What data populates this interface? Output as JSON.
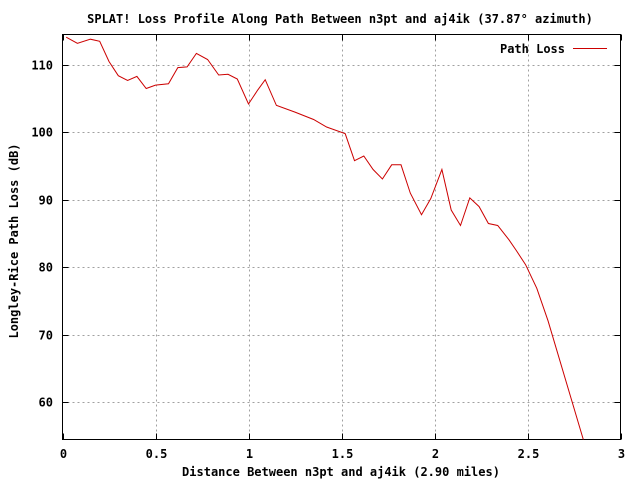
{
  "chart_data": {
    "type": "line",
    "title": "SPLAT! Loss Profile Along Path Between n3pt and aj4ik (37.87° azimuth)",
    "xlabel": "Distance Between n3pt and aj4ik (2.90 miles)",
    "ylabel": "Longley-Rice Path Loss (dB)",
    "xlim": [
      0,
      3
    ],
    "ylim": [
      54.5,
      114.5
    ],
    "x_ticks": [
      "0",
      "0.5",
      "1",
      "1.5",
      "2",
      "2.5",
      "3"
    ],
    "x_tick_values": [
      0,
      0.5,
      1,
      1.5,
      2,
      2.5,
      3
    ],
    "y_ticks": [
      "60",
      "70",
      "80",
      "90",
      "100",
      "110"
    ],
    "y_tick_values": [
      60,
      70,
      80,
      90,
      100,
      110
    ],
    "grid": true,
    "legend_position": "top-right",
    "series": [
      {
        "name": "Path Loss",
        "color": "#cc0000",
        "x": [
          0.02,
          0.08,
          0.15,
          0.2,
          0.25,
          0.3,
          0.35,
          0.4,
          0.45,
          0.5,
          0.57,
          0.62,
          0.67,
          0.72,
          0.78,
          0.84,
          0.89,
          0.94,
          1.0,
          1.05,
          1.09,
          1.15,
          1.25,
          1.35,
          1.42,
          1.52,
          1.57,
          1.62,
          1.67,
          1.72,
          1.77,
          1.82,
          1.87,
          1.93,
          1.98,
          2.04,
          2.09,
          2.14,
          2.19,
          2.24,
          2.29,
          2.34,
          2.4,
          2.44,
          2.49,
          2.55,
          2.61,
          2.8
        ],
        "y": [
          114.1,
          113.2,
          113.8,
          113.5,
          110.5,
          108.4,
          107.7,
          108.3,
          106.5,
          107.0,
          107.2,
          109.6,
          109.7,
          111.7,
          110.8,
          108.5,
          108.6,
          107.9,
          104.2,
          106.3,
          107.8,
          104.0,
          103.0,
          101.9,
          100.8,
          99.8,
          95.8,
          96.5,
          94.5,
          93.1,
          95.2,
          95.2,
          91.0,
          87.8,
          90.2,
          94.5,
          88.5,
          86.2,
          90.3,
          89.0,
          86.5,
          86.2,
          84.1,
          82.5,
          80.4,
          76.9,
          72.1,
          54.5
        ]
      }
    ]
  }
}
